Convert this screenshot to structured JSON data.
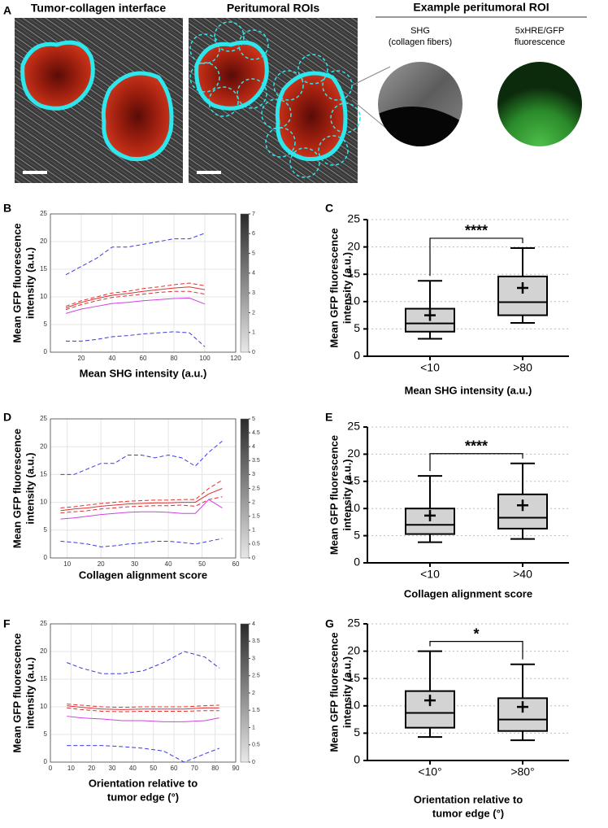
{
  "panel_a": {
    "label": "A",
    "titles": [
      "Tumor-collagen interface",
      "Peritumoral ROIs"
    ],
    "roi_header": "Example peritumoral ROI",
    "roi_captions": [
      [
        "SHG",
        "(collagen fibers)"
      ],
      [
        "5xHRE/GFP",
        "fluorescence"
      ]
    ]
  },
  "chart_data": [
    {
      "type": "line",
      "label": "B",
      "xlabel": [
        "Mean SHG intensity (a.u.)"
      ],
      "ylabel": [
        "Mean GFP fluorescence",
        "intensity (a.u.)"
      ],
      "xlim": [
        0,
        120
      ],
      "xticks": [
        20,
        40,
        60,
        80,
        100,
        120
      ],
      "ylim": [
        0,
        25
      ],
      "yticks": [
        0,
        5,
        10,
        15,
        20,
        25
      ],
      "grid": true,
      "colorbar": {
        "lim": [
          0,
          7
        ],
        "ticks": [
          0,
          1,
          2,
          3,
          4,
          5,
          6,
          7
        ]
      },
      "x": [
        10,
        20,
        30,
        40,
        50,
        60,
        70,
        80,
        90,
        100
      ],
      "series": [
        {
          "color": "#3a3ae0",
          "dash": true,
          "values": [
            14,
            15.5,
            17,
            19,
            19,
            19.5,
            20,
            20.5,
            20.5,
            21.5
          ]
        },
        {
          "color": "#e03030",
          "dash": true,
          "values": [
            8.3,
            9.3,
            10,
            10.7,
            11,
            11.5,
            11.8,
            12.2,
            12.5,
            12
          ]
        },
        {
          "color": "#e03030",
          "dash": false,
          "values": [
            8,
            9,
            9.7,
            10.3,
            10.6,
            11,
            11.3,
            11.6,
            11.8,
            11.3
          ]
        },
        {
          "color": "#e03030",
          "dash": true,
          "values": [
            7.7,
            8.6,
            9.3,
            9.9,
            10.2,
            10.5,
            10.8,
            11,
            11,
            10.5
          ]
        },
        {
          "color": "#d040e0",
          "dash": false,
          "values": [
            7,
            7.8,
            8.3,
            8.8,
            9,
            9.3,
            9.5,
            9.7,
            9.8,
            8.7
          ]
        },
        {
          "color": "#3a3ae0",
          "dash": true,
          "values": [
            2,
            2,
            2.3,
            2.8,
            3,
            3.3,
            3.5,
            3.7,
            3.5,
            1
          ]
        }
      ]
    },
    {
      "type": "box",
      "label": "C",
      "xlabel": [
        "Mean SHG intensity (a.u.)"
      ],
      "ylabel": [
        "Mean GFP fluorescence",
        "intensity (a.u.)"
      ],
      "ylim": [
        0,
        25
      ],
      "yticks": [
        0,
        5,
        10,
        15,
        20,
        25
      ],
      "categories": [
        "<10",
        ">80"
      ],
      "color": "#d3d3d3",
      "min": [
        3.2,
        6.1
      ],
      "q1": [
        4.5,
        7.5
      ],
      "median": [
        6,
        9.9
      ],
      "q3": [
        8.7,
        14.6
      ],
      "max": [
        13.8,
        19.8
      ],
      "mean": [
        7.5,
        12.5
      ],
      "annotation": "****"
    },
    {
      "type": "line",
      "label": "D",
      "xlabel": [
        "Collagen alignment score"
      ],
      "ylabel": [
        "Mean GFP fluorescence",
        "intensity (a.u.)"
      ],
      "xlim": [
        5,
        60
      ],
      "xticks": [
        10,
        20,
        30,
        40,
        50,
        60
      ],
      "ylim": [
        0,
        25
      ],
      "yticks": [
        0,
        5,
        10,
        15,
        20,
        25
      ],
      "grid": true,
      "colorbar": {
        "lim": [
          0,
          5
        ],
        "ticks": [
          0,
          0.5,
          1,
          1.5,
          2,
          2.5,
          3,
          3.5,
          4,
          4.5,
          5
        ]
      },
      "x": [
        8,
        12,
        16,
        20,
        24,
        28,
        32,
        36,
        40,
        44,
        48,
        52,
        56
      ],
      "series": [
        {
          "color": "#3a3ae0",
          "dash": true,
          "values": [
            15,
            15,
            16,
            17,
            17,
            18.5,
            18.5,
            18,
            18.5,
            18,
            16.5,
            19,
            21
          ]
        },
        {
          "color": "#e03030",
          "dash": true,
          "values": [
            9,
            9.2,
            9.5,
            9.8,
            10,
            10.2,
            10.3,
            10.4,
            10.4,
            10.5,
            10.5,
            12.5,
            14
          ]
        },
        {
          "color": "#e03030",
          "dash": false,
          "values": [
            8.5,
            8.8,
            9,
            9.3,
            9.5,
            9.7,
            9.8,
            9.9,
            9.9,
            10,
            10,
            11.5,
            12.5
          ]
        },
        {
          "color": "#e03030",
          "dash": true,
          "values": [
            8.1,
            8.3,
            8.5,
            8.8,
            9,
            9.2,
            9.3,
            9.4,
            9.4,
            9.5,
            9.3,
            10.5,
            11
          ]
        },
        {
          "color": "#d040e0",
          "dash": false,
          "values": [
            7,
            7.2,
            7.5,
            7.8,
            8,
            8.2,
            8.3,
            8.3,
            8.2,
            8,
            8,
            10.5,
            9
          ]
        },
        {
          "color": "#3a3ae0",
          "dash": true,
          "values": [
            3,
            2.8,
            2.5,
            2,
            2.2,
            2.5,
            2.7,
            3,
            3,
            2.8,
            2.5,
            3,
            3.5
          ]
        }
      ]
    },
    {
      "type": "box",
      "label": "E",
      "xlabel": [
        "Collagen alignment score"
      ],
      "ylabel": [
        "Mean GFP fluorescence",
        "intensity (a.u.)"
      ],
      "ylim": [
        0,
        25
      ],
      "yticks": [
        0,
        5,
        10,
        15,
        20,
        25
      ],
      "categories": [
        "<10",
        ">40"
      ],
      "color": "#d3d3d3",
      "min": [
        3.8,
        4.4
      ],
      "q1": [
        5.3,
        6.3
      ],
      "median": [
        7,
        8.3
      ],
      "q3": [
        10,
        12.6
      ],
      "max": [
        16,
        18.3
      ],
      "mean": [
        8.7,
        10.6
      ],
      "annotation": "****"
    },
    {
      "type": "line",
      "label": "F",
      "xlabel": [
        "Orientation relative to",
        "tumor edge (°)"
      ],
      "ylabel": [
        "Mean GFP fluorescence",
        "intensity (a.u.)"
      ],
      "xlim": [
        0,
        90
      ],
      "xticks": [
        0,
        10,
        20,
        30,
        40,
        50,
        60,
        70,
        80,
        90
      ],
      "ylim": [
        0,
        25
      ],
      "yticks": [
        0,
        5,
        10,
        15,
        20,
        25
      ],
      "grid": true,
      "colorbar": {
        "lim": [
          0,
          4
        ],
        "ticks": [
          0,
          0.5,
          1,
          1.5,
          2,
          2.5,
          3,
          3.5,
          4
        ]
      },
      "x": [
        8,
        15,
        25,
        35,
        45,
        55,
        65,
        75,
        82
      ],
      "series": [
        {
          "color": "#3a3ae0",
          "dash": true,
          "values": [
            18,
            17,
            16,
            16,
            16.5,
            18,
            20,
            19,
            17
          ]
        },
        {
          "color": "#e03030",
          "dash": true,
          "values": [
            10.5,
            10.3,
            10,
            9.9,
            10,
            10,
            10,
            10.2,
            10.3
          ]
        },
        {
          "color": "#e03030",
          "dash": false,
          "values": [
            10.2,
            9.9,
            9.6,
            9.5,
            9.6,
            9.6,
            9.6,
            9.8,
            9.8
          ]
        },
        {
          "color": "#e03030",
          "dash": true,
          "values": [
            9.8,
            9.5,
            9.2,
            9.1,
            9.2,
            9.2,
            9.2,
            9.3,
            9.3
          ]
        },
        {
          "color": "#d040e0",
          "dash": false,
          "values": [
            8.3,
            8,
            7.8,
            7.5,
            7.5,
            7.3,
            7.3,
            7.5,
            8
          ]
        },
        {
          "color": "#3a3ae0",
          "dash": true,
          "values": [
            3,
            3,
            3,
            2.8,
            2.5,
            2,
            0,
            1.5,
            2.5
          ]
        }
      ]
    },
    {
      "type": "box",
      "label": "G",
      "xlabel": [
        "Orientation relative to",
        "tumor edge (°)"
      ],
      "ylabel": [
        "Mean GFP fluorescence",
        "intensity (a.u.)"
      ],
      "ylim": [
        0,
        25
      ],
      "yticks": [
        0,
        5,
        10,
        15,
        20,
        25
      ],
      "categories": [
        "<10°",
        ">80°"
      ],
      "color": "#d3d3d3",
      "min": [
        4.3,
        3.7
      ],
      "q1": [
        6,
        5.4
      ],
      "median": [
        8.7,
        7.5
      ],
      "q3": [
        12.7,
        11.4
      ],
      "max": [
        20,
        17.6
      ],
      "mean": [
        11,
        9.8
      ],
      "annotation": "*"
    }
  ]
}
